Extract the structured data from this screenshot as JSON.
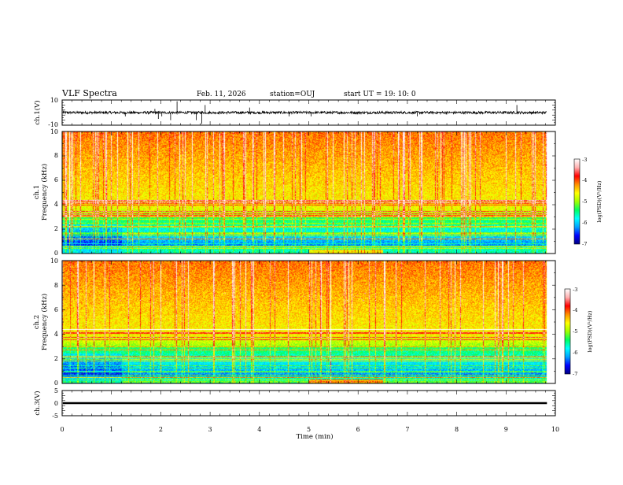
{
  "header": {
    "title": "VLF Spectra",
    "date": "Feb. 11, 2026",
    "station": "station=OUJ",
    "start": "start UT = 19: 10: 0"
  },
  "chart_data": [
    {
      "type": "line",
      "id": "ch1-waveform",
      "ylabel": "ch.1(V)",
      "ylim": [
        -10,
        10
      ],
      "yticks": [
        10,
        -10
      ],
      "xlim": [
        0,
        10
      ],
      "data_end_min": 9.83,
      "baseline": 0,
      "noise_amplitude": 1,
      "spikes": [
        {
          "t": 0.02,
          "v": 1.5
        },
        {
          "t": 1.28,
          "v": -3
        },
        {
          "t": 1.88,
          "v": 3
        },
        {
          "t": 1.95,
          "v": -5
        },
        {
          "t": 2.02,
          "v": -3
        },
        {
          "t": 2.2,
          "v": -6
        },
        {
          "t": 2.33,
          "v": 9
        },
        {
          "t": 2.72,
          "v": -6
        },
        {
          "t": 2.83,
          "v": -9
        },
        {
          "t": 2.9,
          "v": 6
        },
        {
          "t": 3.8,
          "v": 4
        },
        {
          "t": 4.6,
          "v": -3
        },
        {
          "t": 5.05,
          "v": -3
        },
        {
          "t": 7.2,
          "v": -3
        },
        {
          "t": 9.22,
          "v": 6
        }
      ]
    },
    {
      "type": "heatmap",
      "id": "ch1-spectrogram",
      "ylabel_line1": "ch.1",
      "ylabel_line2": "Frequency (kHz)",
      "ylim": [
        0,
        10
      ],
      "yticks": [
        0,
        2,
        4,
        6,
        8,
        10
      ],
      "xlim": [
        0,
        10
      ],
      "data_end_min": 9.83,
      "colorbar": {
        "label": "log(PSD)(V²/Hz)",
        "range": [
          -7,
          -3
        ],
        "ticks": [
          -3,
          -4,
          -5,
          -6,
          -7
        ],
        "colors": [
          "#000080",
          "#0000ff",
          "#00a0ff",
          "#00ffff",
          "#00ff60",
          "#a0ff00",
          "#ffff00",
          "#ff9000",
          "#ff0000",
          "#ffb0b0",
          "#ffffff"
        ]
      }
    },
    {
      "type": "heatmap",
      "id": "ch2-spectrogram",
      "ylabel_line1": "ch.2",
      "ylabel_line2": "Frequency (kHz)",
      "ylim": [
        0,
        10
      ],
      "yticks": [
        0,
        2,
        4,
        6,
        8,
        10
      ],
      "xlim": [
        0,
        10
      ],
      "data_end_min": 9.83,
      "colorbar": {
        "label": "log(PSD)(V²/Hz)",
        "range": [
          -7,
          -3
        ],
        "ticks": [
          -3,
          -4,
          -5,
          -6,
          -7
        ],
        "colors": [
          "#000080",
          "#0000ff",
          "#00a0ff",
          "#00ffff",
          "#00ff60",
          "#a0ff00",
          "#ffff00",
          "#ff9000",
          "#ff0000",
          "#ffb0b0",
          "#ffffff"
        ]
      }
    },
    {
      "type": "line",
      "id": "ch3-waveform",
      "ylabel": "ch.3(V)",
      "ylim": [
        -5,
        5
      ],
      "yticks": [
        5,
        0,
        -5
      ],
      "xlim": [
        0,
        10
      ],
      "data_end_min": 9.83,
      "baseline": 0,
      "noise_amplitude": 0.4
    }
  ],
  "xaxis": {
    "label": "Time (min)",
    "ticks": [
      0,
      1,
      2,
      3,
      4,
      5,
      6,
      7,
      8,
      9,
      10
    ]
  }
}
